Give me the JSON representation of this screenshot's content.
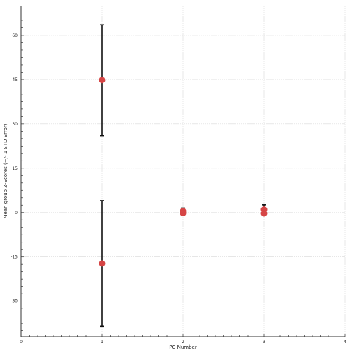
{
  "chart_data": {
    "type": "scatter",
    "title": "",
    "xlabel": "PC Number",
    "ylabel": "Mean group Z-Scores (+/- 1 STD Error)",
    "xlim": [
      0,
      4
    ],
    "ylim": [
      -42,
      70
    ],
    "x_ticks": [
      "0",
      "1",
      "2",
      "3",
      "4"
    ],
    "y_ticks": [
      "-30",
      "-15",
      "0",
      "15",
      "30",
      "45",
      "60"
    ],
    "grid": true,
    "legend": "none",
    "series": [
      {
        "points": [
          {
            "x": 1,
            "y": 44.8,
            "err_low": 26.0,
            "err_high": 63.5
          },
          {
            "x": 1,
            "y": -17.2,
            "err_low": -38.5,
            "err_high": 4.0
          },
          {
            "x": 2,
            "y": 0.5,
            "err_low": -0.5,
            "err_high": 1.5
          },
          {
            "x": 2,
            "y": -0.2,
            "err_low": -1.0,
            "err_high": 0.6
          },
          {
            "x": 3,
            "y": 1.0,
            "err_low": 0.3,
            "err_high": 2.6
          },
          {
            "x": 3,
            "y": -0.3,
            "err_low": -1.0,
            "err_high": 0.4
          }
        ]
      }
    ],
    "colors": {
      "marker": "#d64545",
      "errorbar": "#111111",
      "grid": "#d8d8d8",
      "axis": "#333333"
    }
  }
}
